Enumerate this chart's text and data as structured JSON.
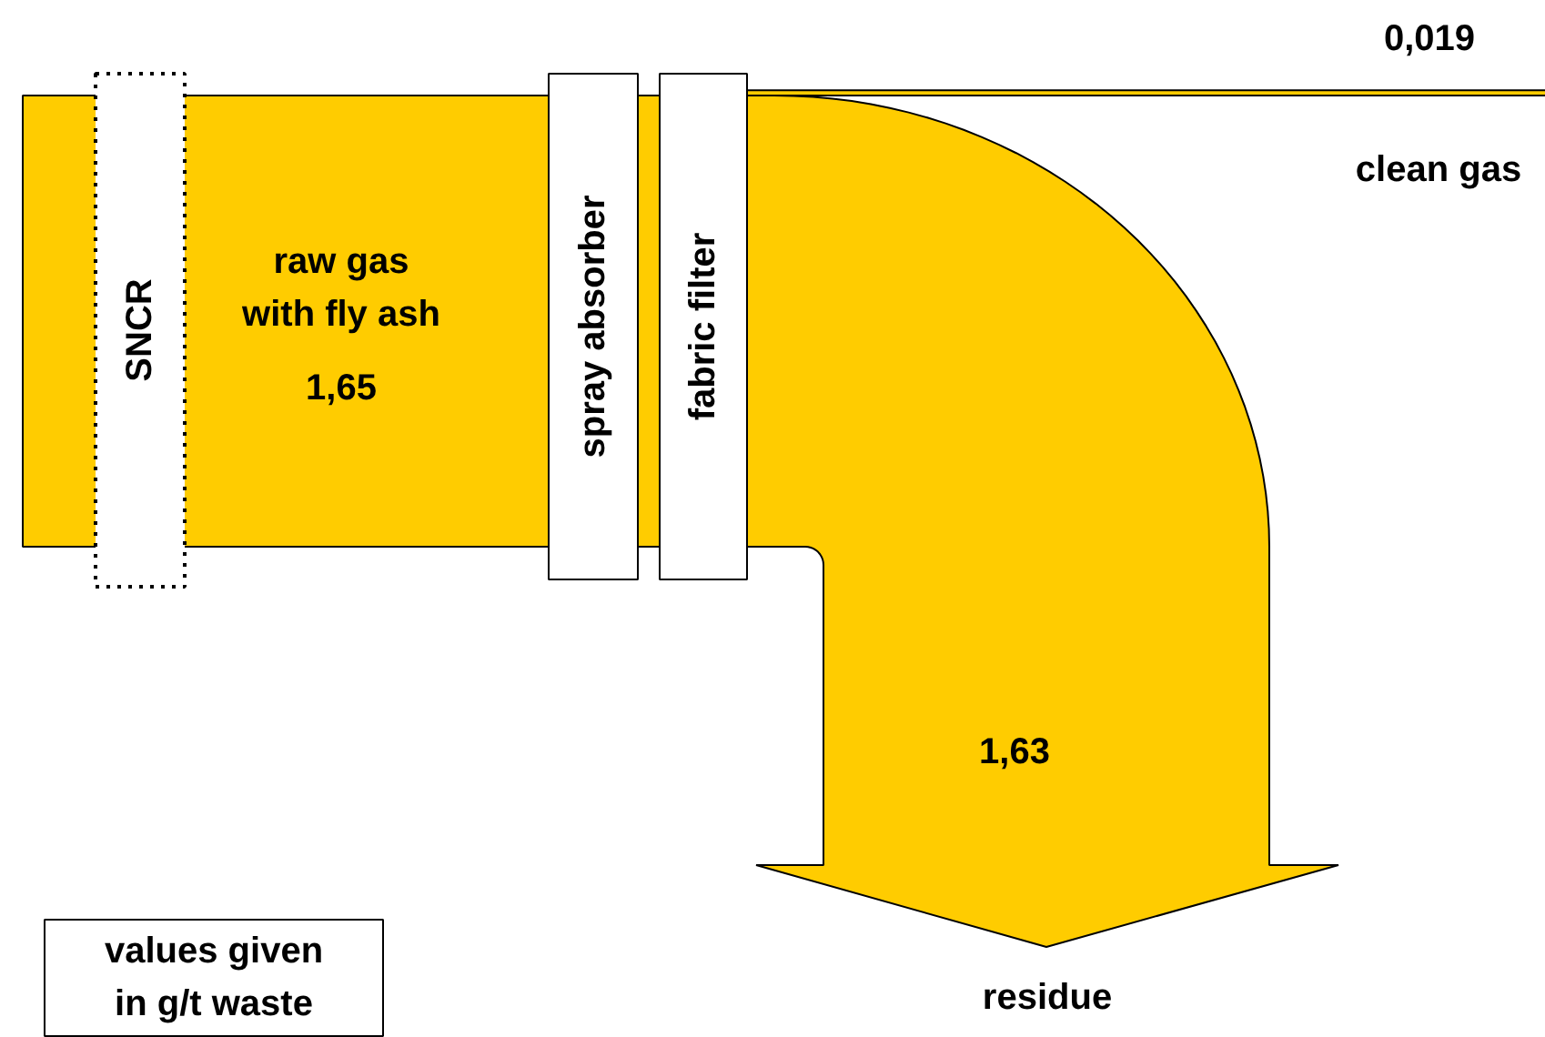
{
  "chart_data": {
    "type": "other",
    "categories": [
      "raw gas\nwith fly ash",
      "clean gas",
      "residue"
    ],
    "values": [
      1.65,
      0.019,
      1.63
    ],
    "value_labels": [
      "1,65",
      "0,019",
      "1,63"
    ],
    "color": "#ffcc00",
    "annotations": [
      "SNCR",
      "spray absorber",
      "fabric filter",
      "values given\nin g/t waste"
    ]
  }
}
